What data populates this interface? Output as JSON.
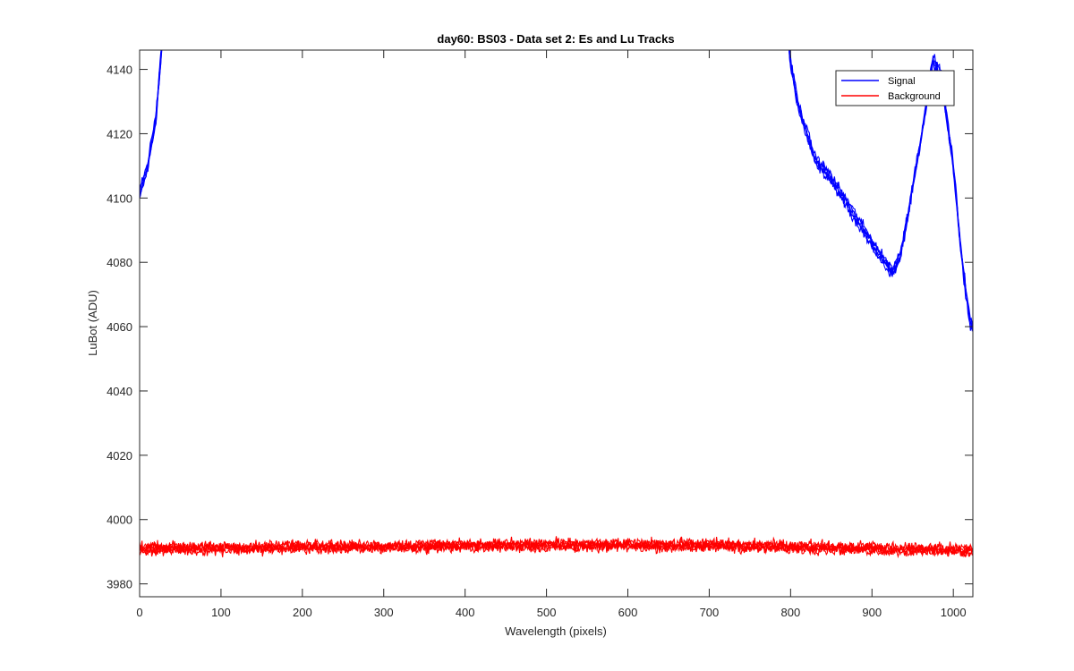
{
  "chart_data": {
    "type": "line",
    "title": "day60: BS03 - Data set 2: Es and Lu Tracks",
    "xlabel": "Wavelength (pixels)",
    "ylabel": "LuBot (ADU)",
    "xlim": [
      0,
      1024
    ],
    "ylim": [
      3976,
      4146
    ],
    "x_ticks": [
      0,
      100,
      200,
      300,
      400,
      500,
      600,
      700,
      800,
      900,
      1000
    ],
    "y_ticks": [
      3980,
      4000,
      4020,
      4040,
      4060,
      4080,
      4100,
      4120,
      4140
    ],
    "grid": false,
    "legend_position": "top-right",
    "series": [
      {
        "name": "Signal",
        "color": "#0000ff",
        "tracks": 5,
        "x": [
          0,
          10,
          20,
          25,
          30,
          35,
          790,
          800,
          810,
          830,
          850,
          870,
          890,
          910,
          925,
          935,
          945,
          960,
          975,
          985,
          1000,
          1010,
          1020,
          1024
        ],
        "y": [
          4101,
          4110,
          4125,
          4140,
          4155,
          4170,
          4170,
          4142,
          4128,
          4112,
          4106,
          4098,
          4090,
          4082,
          4077,
          4082,
          4096,
          4118,
          4143,
          4138,
          4110,
          4082,
          4062,
          4060
        ]
      },
      {
        "name": "Background",
        "color": "#ff0000",
        "tracks": 5,
        "x": [
          0,
          100,
          200,
          300,
          400,
          500,
          600,
          700,
          800,
          900,
          1000,
          1024
        ],
        "y": [
          3991,
          3991,
          3991.5,
          3991.5,
          3992,
          3992,
          3992,
          3992,
          3991.5,
          3991,
          3990.5,
          3990.5
        ]
      }
    ]
  }
}
